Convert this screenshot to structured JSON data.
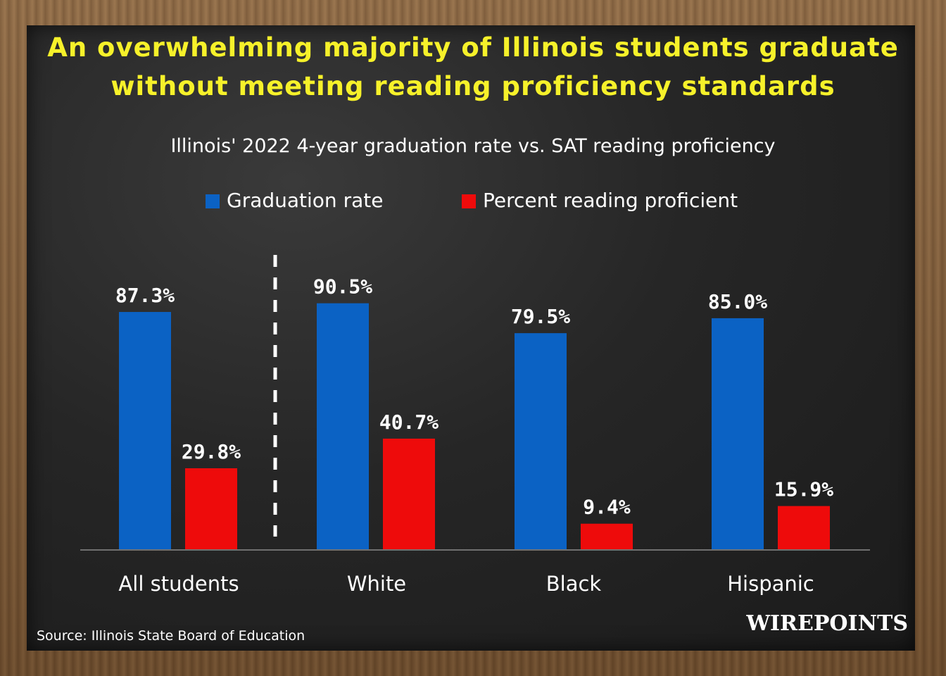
{
  "chart_data": {
    "type": "bar",
    "title": "An overwhelming majority of Illinois students graduate without meeting reading proficiency standards",
    "subtitle": "Illinois' 2022 4-year graduation rate vs. SAT reading proficiency",
    "categories": [
      "All students",
      "White",
      "Black",
      "Hispanic"
    ],
    "series": [
      {
        "name": "Graduation rate",
        "values": [
          87.3,
          90.5,
          79.5,
          85.0
        ],
        "labels": [
          "87.3%",
          "90.5%",
          "79.5%",
          "85.0%"
        ],
        "color": "#0b62c4"
      },
      {
        "name": "Percent reading proficient",
        "values": [
          29.8,
          40.7,
          9.4,
          15.9
        ],
        "labels": [
          "29.8%",
          "40.7%",
          "9.4%",
          "15.9%"
        ],
        "color": "#ee0b0b"
      }
    ],
    "ylim": [
      0,
      100
    ],
    "grid": false,
    "legend_position": "top",
    "separator_after_category": "All students",
    "value_label_color": "#ffffff"
  },
  "source": "Source: Illinois State Board of Education",
  "logo_text": "WIREPOINTS",
  "colors": {
    "title": "#f6f12a",
    "board": "#262626",
    "frame": "#8a6a45"
  }
}
